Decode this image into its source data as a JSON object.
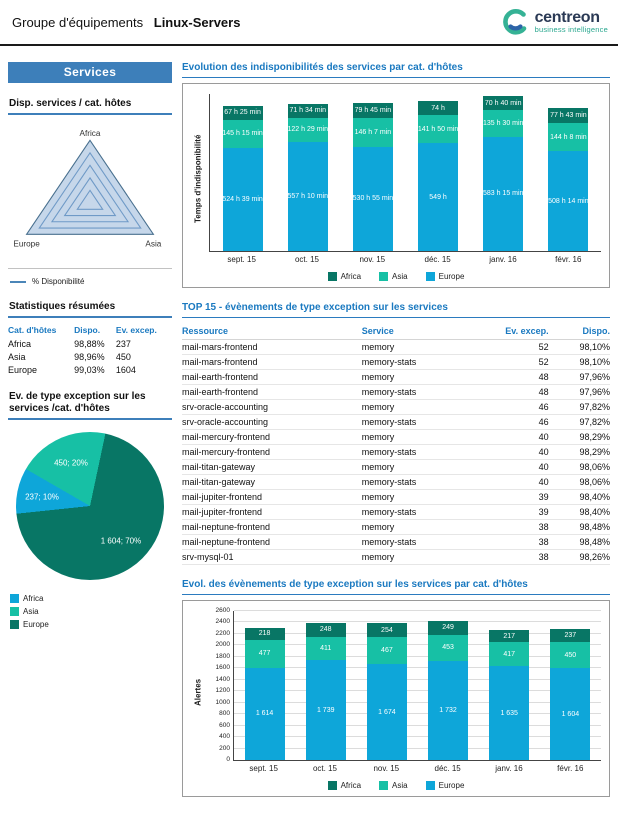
{
  "header": {
    "title_prefix": "Groupe d'équipements",
    "title_main": "Linux-Servers",
    "logo_text": "centreon",
    "logo_subtitle": "business intelligence"
  },
  "sidebar": {
    "banner": "Services",
    "radar_title": "Disp. services / cat. hôtes",
    "radar_legend": "% Disponibilité",
    "stats": {
      "title": "Statistiques résumées",
      "columns": [
        "Cat. d'hôtes",
        "Dispo.",
        "Ev. excep."
      ],
      "rows": [
        [
          "Africa",
          "98,88%",
          "237"
        ],
        [
          "Asia",
          "98,96%",
          "450"
        ],
        [
          "Europe",
          "99,03%",
          "1604"
        ]
      ]
    },
    "pie_title": "Ev. de type exception sur les services /cat. d'hôtes"
  },
  "top15": {
    "title": "TOP 15 - évènements de type exception sur les services",
    "columns": [
      "Ressource",
      "Service",
      "Ev. excep.",
      "Dispo."
    ],
    "rows": [
      [
        "mail-mars-frontend",
        "memory",
        "52",
        "98,10%"
      ],
      [
        "mail-mars-frontend",
        "memory-stats",
        "52",
        "98,10%"
      ],
      [
        "mail-earth-frontend",
        "memory",
        "48",
        "97,96%"
      ],
      [
        "mail-earth-frontend",
        "memory-stats",
        "48",
        "97,96%"
      ],
      [
        "srv-oracle-accounting",
        "memory",
        "46",
        "97,82%"
      ],
      [
        "srv-oracle-accounting",
        "memory-stats",
        "46",
        "97,82%"
      ],
      [
        "mail-mercury-frontend",
        "memory",
        "40",
        "98,29%"
      ],
      [
        "mail-mercury-frontend",
        "memory-stats",
        "40",
        "98,29%"
      ],
      [
        "mail-titan-gateway",
        "memory",
        "40",
        "98,06%"
      ],
      [
        "mail-titan-gateway",
        "memory-stats",
        "40",
        "98,06%"
      ],
      [
        "mail-jupiter-frontend",
        "memory",
        "39",
        "98,40%"
      ],
      [
        "mail-jupiter-frontend",
        "memory-stats",
        "39",
        "98,40%"
      ],
      [
        "mail-neptune-frontend",
        "memory",
        "38",
        "98,48%"
      ],
      [
        "mail-neptune-frontend",
        "memory-stats",
        "38",
        "98,48%"
      ],
      [
        "srv-mysql-01",
        "memory",
        "38",
        "98,26%"
      ]
    ]
  },
  "chart_data": [
    {
      "id": "radar-availability",
      "type": "radar",
      "title": "Disp. services / cat. hôtes",
      "axes": [
        "Africa",
        "Europe",
        "Asia"
      ],
      "series": [
        {
          "name": "% Disponibilité",
          "values": [
            98.88,
            99.03,
            98.96
          ]
        }
      ]
    },
    {
      "id": "uptime-evolution",
      "type": "bar",
      "stacked": true,
      "title": "Evolution des indisponibilités des services par cat. d'hôtes",
      "ylabel": "Temps d'indisponibilité",
      "ylim": [
        0,
        800
      ],
      "categories": [
        "sept. 15",
        "oct. 15",
        "nov. 15",
        "déc. 15",
        "janv. 16",
        "févr. 16"
      ],
      "series": [
        {
          "name": "Europe",
          "color": "#0ea6d9",
          "values": [
            524.65,
            557.17,
            530.92,
            549,
            583.25,
            508.23
          ],
          "labels": [
            "524 h 39 min",
            "557 h 10 min",
            "530 h 55 min",
            "549 h",
            "583 h 15 min",
            "508 h 14 min"
          ]
        },
        {
          "name": "Asia",
          "color": "#17c0a5",
          "values": [
            145.25,
            122.48,
            146.12,
            141.83,
            135.5,
            144.13
          ],
          "labels": [
            "145 h 15 min",
            "122 h 29 min",
            "146 h 7 min",
            "141 h 50 min",
            "135 h 30 min",
            "144 h 8 min"
          ]
        },
        {
          "name": "Africa",
          "color": "#087665",
          "values": [
            67.42,
            71.57,
            79.75,
            74,
            70.67,
            77.72
          ],
          "labels": [
            "67 h 25 min",
            "71 h 34 min",
            "79 h 45 min",
            "74 h",
            "70 h 40 min",
            "77 h 43 min"
          ]
        }
      ],
      "legend": [
        "Africa",
        "Asia",
        "Europe"
      ],
      "legend_colors": {
        "Africa": "#087665",
        "Asia": "#17c0a5",
        "Europe": "#0ea6d9"
      }
    },
    {
      "id": "exceptions-pie",
      "type": "pie",
      "title": "Ev. de type exception sur les services /cat. d'hôtes",
      "slices": [
        {
          "name": "Africa",
          "value": 237,
          "pct": 10,
          "label": "237; 10%",
          "color": "#0ea6d9"
        },
        {
          "name": "Asia",
          "value": 450,
          "pct": 20,
          "label": "450; 20%",
          "color": "#17c0a5"
        },
        {
          "name": "Europe",
          "value": 1604,
          "pct": 70,
          "label": "1 604; 70%",
          "color": "#087665"
        }
      ],
      "legend": [
        "Africa",
        "Asia",
        "Europe"
      ]
    },
    {
      "id": "exceptions-evolution",
      "type": "bar",
      "stacked": true,
      "title": "Evol. des évènements de type exception sur les services par cat. d'hôtes",
      "ylabel": "Alertes",
      "ylim": [
        0,
        2600
      ],
      "ytick_step": 200,
      "categories": [
        "sept. 15",
        "oct. 15",
        "nov. 15",
        "déc. 15",
        "janv. 16",
        "févr. 16"
      ],
      "series": [
        {
          "name": "Europe",
          "color": "#0ea6d9",
          "values": [
            1614,
            1739,
            1674,
            1732,
            1635,
            1604
          ],
          "labels": [
            "1 614",
            "1 739",
            "1 674",
            "1 732",
            "1 635",
            "1 604"
          ]
        },
        {
          "name": "Asia",
          "color": "#17c0a5",
          "values": [
            477,
            411,
            467,
            453,
            417,
            450
          ],
          "labels": [
            "477",
            "411",
            "467",
            "453",
            "417",
            "450"
          ]
        },
        {
          "name": "Africa",
          "color": "#087665",
          "values": [
            218,
            248,
            254,
            249,
            217,
            237
          ],
          "labels": [
            "218",
            "248",
            "254",
            "249",
            "217",
            "237"
          ]
        }
      ],
      "legend": [
        "Africa",
        "Asia",
        "Europe"
      ],
      "legend_colors": {
        "Africa": "#087665",
        "Asia": "#17c0a5",
        "Europe": "#0ea6d9"
      }
    }
  ],
  "colors": {
    "accent_blue": "#1a79c0",
    "banner_blue": "#3d7fba",
    "africa_dark": "#087665",
    "asia_teal": "#17c0a5",
    "europe_blue": "#0ea6d9"
  }
}
